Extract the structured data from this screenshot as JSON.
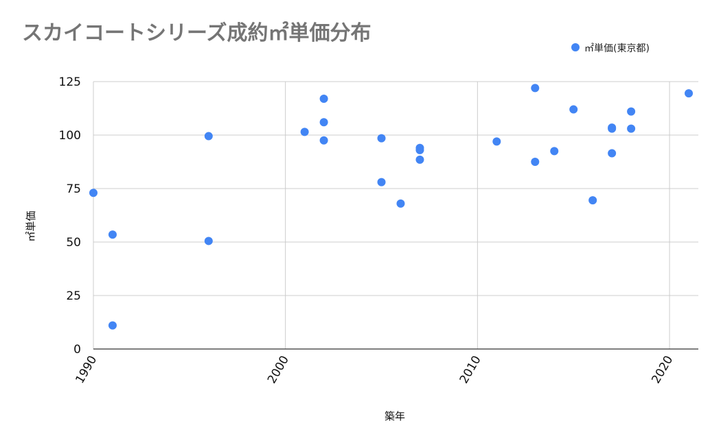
{
  "chart_data": {
    "type": "scatter",
    "title": "スカイコートシリーズ成約㎡単価分布",
    "xlabel": "築年",
    "ylabel": "㎡単価",
    "xlim": [
      1990,
      2021.5
    ],
    "ylim": [
      0,
      125
    ],
    "xticks": [
      1990,
      2000,
      2010,
      2020
    ],
    "yticks": [
      0,
      25,
      50,
      75,
      100,
      125
    ],
    "grid": true,
    "legend_position": "top-right",
    "series": [
      {
        "name": "㎡単価(東京都)",
        "color": "#4285f4",
        "points": [
          {
            "x": 1990,
            "y": 73
          },
          {
            "x": 1991,
            "y": 53.5
          },
          {
            "x": 1991,
            "y": 11
          },
          {
            "x": 1996,
            "y": 99.5
          },
          {
            "x": 1996,
            "y": 50.5
          },
          {
            "x": 2001,
            "y": 101.5
          },
          {
            "x": 2002,
            "y": 117
          },
          {
            "x": 2002,
            "y": 106
          },
          {
            "x": 2002,
            "y": 97.5
          },
          {
            "x": 2005,
            "y": 98.5
          },
          {
            "x": 2005,
            "y": 78
          },
          {
            "x": 2006,
            "y": 68
          },
          {
            "x": 2007,
            "y": 94
          },
          {
            "x": 2007,
            "y": 93
          },
          {
            "x": 2007,
            "y": 88.5
          },
          {
            "x": 2011,
            "y": 97
          },
          {
            "x": 2013,
            "y": 122
          },
          {
            "x": 2013,
            "y": 87.5
          },
          {
            "x": 2014,
            "y": 92.5
          },
          {
            "x": 2015,
            "y": 112
          },
          {
            "x": 2016,
            "y": 69.5
          },
          {
            "x": 2017,
            "y": 103.5
          },
          {
            "x": 2017,
            "y": 103
          },
          {
            "x": 2017,
            "y": 91.5
          },
          {
            "x": 2018,
            "y": 111
          },
          {
            "x": 2018,
            "y": 103
          },
          {
            "x": 2021,
            "y": 119.5
          }
        ]
      }
    ]
  }
}
